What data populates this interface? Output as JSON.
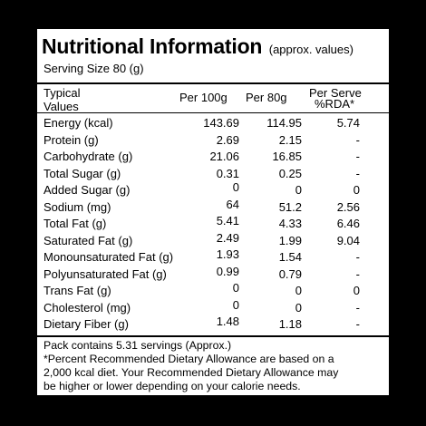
{
  "title": "Nutritional Information",
  "subtitle": "(approx. values)",
  "serving_size": "Serving Size 80 (g)",
  "columns": {
    "name_line1": "Typical",
    "name_line2": "Values",
    "per100": "Per 100g",
    "per80": "Per 80g",
    "rda_line1": "Per Serve",
    "rda_line2": "%RDA*"
  },
  "rows": [
    {
      "name": "Energy (kcal)",
      "per100": "143.69",
      "per80": "114.95",
      "rda": "5.74"
    },
    {
      "name": "Protein (g)",
      "per100": "2.69",
      "per80": "2.15",
      "rda": "-"
    },
    {
      "name": "Carbohydrate (g)",
      "per100": "21.06",
      "per80": "16.85",
      "rda": "-"
    },
    {
      "name": "Total Sugar (g)",
      "per100": "0.31",
      "per80": "0.25",
      "rda": "-"
    },
    {
      "name": "Added Sugar (g)",
      "per100": "0",
      "per80": "0",
      "rda": "0"
    },
    {
      "name": "Sodium (mg)",
      "per100": "64",
      "per80": "51.2",
      "rda": "2.56"
    },
    {
      "name": "Total Fat (g)",
      "per100": "5.41",
      "per80": "4.33",
      "rda": "6.46"
    },
    {
      "name": "Saturated Fat (g)",
      "per100": "2.49",
      "per80": "1.99",
      "rda": "9.04"
    },
    {
      "name": "Monounsaturated Fat (g)",
      "per100": "1.93",
      "per80": "1.54",
      "rda": "-"
    },
    {
      "name": "Polyunsaturated Fat (g)",
      "per100": "0.99",
      "per80": "0.79",
      "rda": "-"
    },
    {
      "name": "Trans Fat (g)",
      "per100": "0",
      "per80": "0",
      "rda": "0"
    },
    {
      "name": "Cholesterol (mg)",
      "per100": "0",
      "per80": "0",
      "rda": "-"
    },
    {
      "name": "Dietary Fiber (g)",
      "per100": "1.48",
      "per80": "1.18",
      "rda": "-"
    }
  ],
  "footer": {
    "line1": "Pack contains 5.31 servings (Approx.)",
    "line2": "*Percent Recommended Dietary Allowance are based on a",
    "line3": "2,000 kcal diet. Your Recommended Dietary Allowance may",
    "line4": "be higher or lower depending on your calorie needs."
  },
  "colors": {
    "background": "#000000",
    "panel": "#ffffff",
    "text": "#000000"
  }
}
